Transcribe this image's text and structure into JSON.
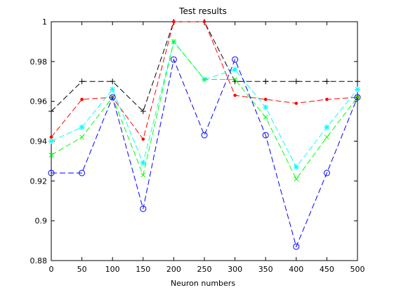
{
  "chart_data": {
    "type": "line",
    "title": "Test results",
    "xlabel": "Neuron numbers",
    "ylabel": "",
    "x": [
      0,
      50,
      100,
      150,
      200,
      250,
      300,
      350,
      400,
      450,
      500
    ],
    "xlim": [
      0,
      500
    ],
    "ylim": [
      0.88,
      1.0
    ],
    "xticks": [
      0,
      50,
      100,
      150,
      200,
      250,
      300,
      350,
      400,
      450,
      500
    ],
    "yticks": [
      0.88,
      0.9,
      0.92,
      0.94,
      0.96,
      0.98,
      1.0
    ],
    "ytick_labels": [
      "0.88",
      "0.9",
      "0.92",
      "0.94",
      "0.96",
      "0.98",
      "1"
    ],
    "grid": false,
    "series": [
      {
        "color": "#000000",
        "marker": "plus",
        "values": [
          0.955,
          0.97,
          0.97,
          0.955,
          1.0,
          1.0,
          0.97,
          0.97,
          0.97,
          0.97,
          0.97
        ]
      },
      {
        "color": "#ff0000",
        "marker": "dot",
        "values": [
          0.942,
          0.961,
          0.962,
          0.941,
          1.0,
          1.0,
          0.963,
          0.961,
          0.959,
          0.961,
          0.962
        ]
      },
      {
        "color": "#00ffff",
        "marker": "asterisk",
        "values": [
          0.94,
          0.947,
          0.966,
          0.929,
          0.99,
          0.971,
          0.976,
          0.957,
          0.927,
          0.947,
          0.966
        ]
      },
      {
        "color": "#00ff00",
        "marker": "cross",
        "values": [
          0.933,
          0.942,
          0.962,
          0.923,
          0.99,
          0.971,
          0.971,
          0.952,
          0.921,
          0.942,
          0.962
        ]
      },
      {
        "color": "#0000ff",
        "marker": "circle",
        "values": [
          0.924,
          0.924,
          0.962,
          0.906,
          0.981,
          0.943,
          0.981,
          0.943,
          0.887,
          0.924,
          0.962
        ]
      }
    ]
  }
}
